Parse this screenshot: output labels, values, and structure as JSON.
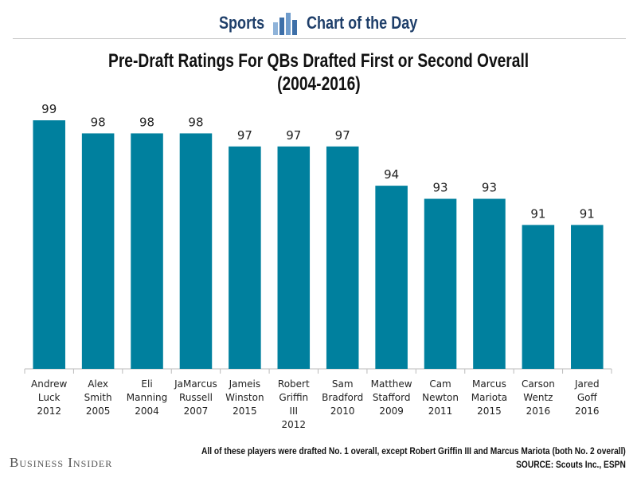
{
  "header": {
    "left": "Sports",
    "right": "Chart of the Day"
  },
  "title_line1": "Pre-Draft Ratings For QBs Drafted First or Second Overall",
  "title_line2": "(2004-2016)",
  "footnote": "All of these players were drafted No. 1 overall, except Robert Griffin III and Marcus Mariota (both No. 2 overall)",
  "source": "SOURCE: Scouts Inc., ESPN",
  "brand": "Business Insider",
  "colors": {
    "bar": "#00809e",
    "axis": "#bbbbbb",
    "header_text": "#1f3f6a"
  },
  "chart_data": {
    "type": "bar",
    "title": "Pre-Draft Ratings For QBs Drafted First or Second Overall (2004-2016)",
    "categories": [
      [
        "Andrew",
        "Luck",
        "2012"
      ],
      [
        "Alex",
        "Smith",
        "2005"
      ],
      [
        "Eli",
        "Manning",
        "2004"
      ],
      [
        "JaMarcus",
        "Russell",
        "2007"
      ],
      [
        "Jameis",
        "Winston",
        "2015"
      ],
      [
        "Robert",
        "Griffin",
        "III",
        "2012"
      ],
      [
        "Sam",
        "Bradford",
        "2010"
      ],
      [
        "Matthew",
        "Stafford",
        "2009"
      ],
      [
        "Cam",
        "Newton",
        "2011"
      ],
      [
        "Marcus",
        "Mariota",
        "2015"
      ],
      [
        "Carson",
        "Wentz",
        "2016"
      ],
      [
        "Jared",
        "Goff",
        "2016"
      ]
    ],
    "values": [
      99,
      98,
      98,
      98,
      97,
      97,
      97,
      94,
      93,
      93,
      91,
      91
    ],
    "ylim": [
      80,
      99
    ],
    "xlabel": "",
    "ylabel": "",
    "grid": false,
    "data_labels": true
  }
}
